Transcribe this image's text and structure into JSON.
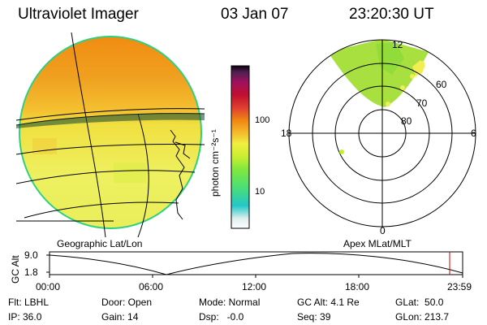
{
  "header": {
    "instrument": "Ultraviolet Imager",
    "date": "03 Jan 07",
    "time": "23:20:30 UT"
  },
  "colorbar": {
    "unit_label": "photon cm⁻²s⁻¹",
    "ticks": [
      {
        "label": "100",
        "value": 100
      },
      {
        "label": "10",
        "value": 10
      }
    ],
    "scale": "log",
    "colors": [
      "#f0f0f0",
      "#cfe8e8",
      "#22c8c8",
      "#4fe070",
      "#7fe840",
      "#c8ee30",
      "#f0ee40",
      "#f4c030",
      "#f08a10",
      "#e04030",
      "#c01030",
      "#a01060",
      "#601060",
      "#200020"
    ]
  },
  "polar": {
    "lat_labels": [
      "80",
      "70",
      "60"
    ],
    "mlt_labels": {
      "top": "12",
      "bottom": "0",
      "left": "18",
      "right": "6"
    }
  },
  "labels": {
    "geo": "Geographic Lat/Lon",
    "apex": "Apex MLat/MLT"
  },
  "altitude_plot": {
    "ylabel": "GC Alt",
    "y_ticks": [
      "9.0",
      "1.8"
    ],
    "x_ticks": [
      "00:00",
      "06:00",
      "12:00",
      "18:00",
      "23:59"
    ],
    "current_time_marker": "23:20:30"
  },
  "footer": {
    "flt": "Flt: LBHL",
    "ip": "IP: 36.0",
    "door": "Door: Open",
    "gain": "Gain: 14",
    "mode": "Mode: Normal",
    "dsp": "Dsp:   -0.0",
    "gcalt": "GC Alt: 4.1 Re",
    "seq": "Seq: 39",
    "glat": "GLat:  50.0",
    "glon": "GLon: 213.7"
  },
  "colors": {
    "marker": "#cc0000",
    "image_orange": "#f0a020",
    "image_yellow": "#f0ee50",
    "polar_green": "#a8e040"
  }
}
